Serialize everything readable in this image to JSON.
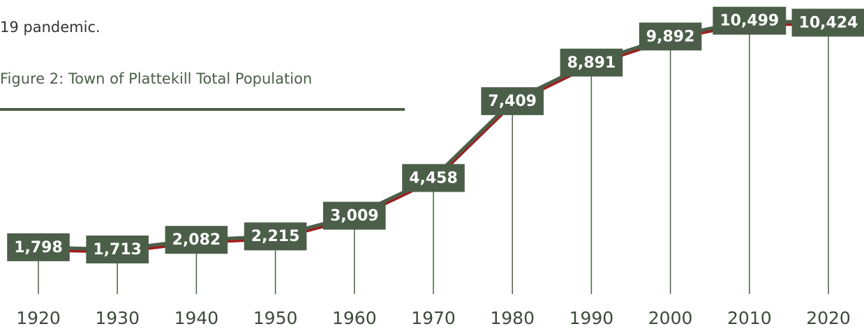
{
  "text": "19 pandemic.",
  "chart_data": {
    "type": "line",
    "title": "Figure 2: Town of Plattekill Total Population",
    "categories": [
      "1920",
      "1930",
      "1940",
      "1950",
      "1960",
      "1970",
      "1980",
      "1990",
      "2000",
      "2010",
      "2020"
    ],
    "values": [
      1798,
      1713,
      2082,
      2215,
      3009,
      4458,
      7409,
      8891,
      9892,
      10499,
      10424
    ],
    "value_labels": [
      "1,798",
      "1,713",
      "2,082",
      "2,215",
      "3,009",
      "4,458",
      "7,409",
      "8,891",
      "9,892",
      "10,499",
      "10,424"
    ],
    "color": "#4b5f48",
    "ylim": [
      0,
      11000
    ]
  }
}
